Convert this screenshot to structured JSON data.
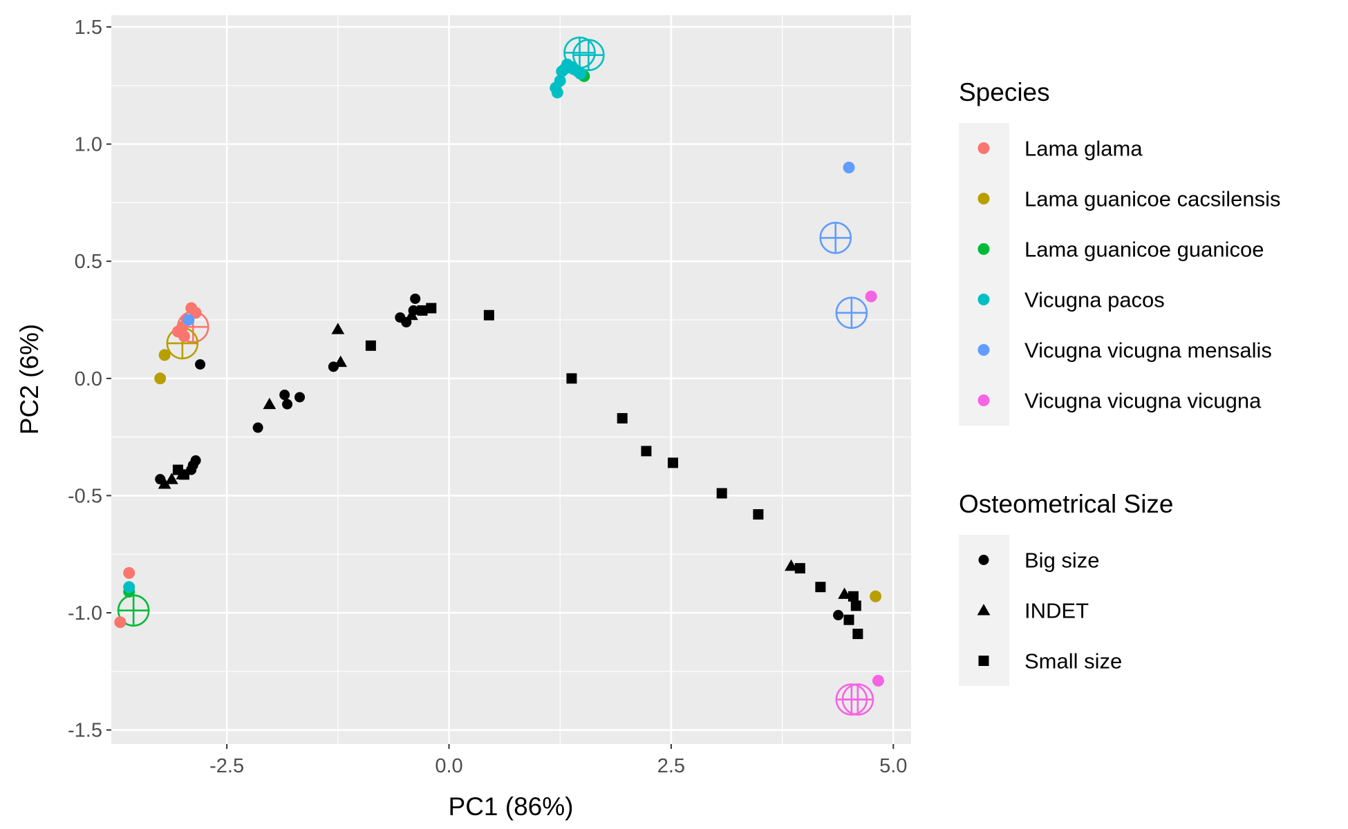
{
  "chart_data": {
    "type": "scatter",
    "title": "",
    "xlabel": "PC1 (86%)",
    "ylabel": "PC2 (6%)",
    "xlim": [
      -3.8,
      5.2
    ],
    "ylim": [
      -1.56,
      1.55
    ],
    "x_ticks": [
      -2.5,
      0.0,
      2.5,
      5.0
    ],
    "x_tick_labels": [
      "-2.5",
      "0.0",
      "2.5",
      "5.0"
    ],
    "y_ticks": [
      -1.5,
      -1.0,
      -0.5,
      0.0,
      0.5,
      1.0,
      1.5
    ],
    "y_tick_labels": [
      "-1.5",
      "-1.0",
      "-0.5",
      "0.0",
      "0.5",
      "1.0",
      "1.5"
    ],
    "grid": true,
    "legend_position": "right",
    "species_legend": {
      "title": "Species",
      "entries": [
        {
          "name": "Lama glama",
          "color": "#F8766D"
        },
        {
          "name": "Lama guanicoe cacsilensis",
          "color": "#B79F00"
        },
        {
          "name": "Lama guanicoe guanicoe",
          "color": "#00BA38"
        },
        {
          "name": "Vicugna pacos",
          "color": "#00BFC4"
        },
        {
          "name": "Vicugna vicugna mensalis",
          "color": "#619CFF"
        },
        {
          "name": "Vicugna vicugna vicugna",
          "color": "#F564E3"
        }
      ]
    },
    "size_legend": {
      "title": "Osteometrical Size",
      "entries": [
        {
          "name": "Big size",
          "shape": "circle"
        },
        {
          "name": "INDET",
          "shape": "triangle"
        },
        {
          "name": "Small size",
          "shape": "square"
        }
      ]
    },
    "species_points": [
      {
        "x": -2.9,
        "y": 0.3,
        "species": "Lama glama"
      },
      {
        "x": -2.85,
        "y": 0.28,
        "species": "Lama glama"
      },
      {
        "x": -2.95,
        "y": 0.25,
        "species": "Lama glama"
      },
      {
        "x": -3.0,
        "y": 0.22,
        "species": "Lama glama"
      },
      {
        "x": -3.05,
        "y": 0.2,
        "species": "Lama glama"
      },
      {
        "x": -2.98,
        "y": 0.18,
        "species": "Lama glama"
      },
      {
        "x": -3.6,
        "y": -0.83,
        "species": "Lama glama"
      },
      {
        "x": -3.7,
        "y": -1.04,
        "species": "Lama glama"
      },
      {
        "x": -3.2,
        "y": 0.1,
        "species": "Lama guanicoe cacsilensis"
      },
      {
        "x": -3.25,
        "y": 0.0,
        "species": "Lama guanicoe cacsilensis"
      },
      {
        "x": 4.8,
        "y": -0.93,
        "species": "Lama guanicoe cacsilensis"
      },
      {
        "x": 1.52,
        "y": 1.29,
        "species": "Lama guanicoe guanicoe"
      },
      {
        "x": -3.6,
        "y": -0.91,
        "species": "Lama guanicoe guanicoe"
      },
      {
        "x": 1.2,
        "y": 1.24,
        "species": "Vicugna pacos"
      },
      {
        "x": 1.22,
        "y": 1.22,
        "species": "Vicugna pacos"
      },
      {
        "x": 1.25,
        "y": 1.27,
        "species": "Vicugna pacos"
      },
      {
        "x": 1.27,
        "y": 1.31,
        "species": "Vicugna pacos"
      },
      {
        "x": 1.3,
        "y": 1.32,
        "species": "Vicugna pacos"
      },
      {
        "x": 1.33,
        "y": 1.34,
        "species": "Vicugna pacos"
      },
      {
        "x": 1.37,
        "y": 1.33,
        "species": "Vicugna pacos"
      },
      {
        "x": 1.4,
        "y": 1.32,
        "species": "Vicugna pacos"
      },
      {
        "x": 1.45,
        "y": 1.31,
        "species": "Vicugna pacos"
      },
      {
        "x": 1.48,
        "y": 1.3,
        "species": "Vicugna pacos"
      },
      {
        "x": -3.6,
        "y": -0.89,
        "species": "Vicugna pacos"
      },
      {
        "x": 4.5,
        "y": 0.9,
        "species": "Vicugna vicugna mensalis"
      },
      {
        "x": -2.93,
        "y": 0.25,
        "species": "Vicugna vicugna mensalis"
      },
      {
        "x": 4.75,
        "y": 0.35,
        "species": "Vicugna vicugna vicugna"
      },
      {
        "x": 4.83,
        "y": -1.29,
        "species": "Vicugna vicugna vicugna"
      }
    ],
    "centroids": [
      {
        "x": -2.88,
        "y": 0.22,
        "species": "Lama glama"
      },
      {
        "x": -3.0,
        "y": 0.15,
        "species": "Lama guanicoe cacsilensis"
      },
      {
        "x": -3.55,
        "y": -0.99,
        "species": "Lama guanicoe guanicoe"
      },
      {
        "x": 1.47,
        "y": 1.39,
        "species": "Vicugna pacos"
      },
      {
        "x": 1.57,
        "y": 1.38,
        "species": "Vicugna pacos"
      },
      {
        "x": 4.35,
        "y": 0.6,
        "species": "Vicugna vicugna mensalis"
      },
      {
        "x": 4.53,
        "y": 0.28,
        "species": "Vicugna vicugna mensalis"
      },
      {
        "x": 4.53,
        "y": -1.37,
        "species": "Vicugna vicugna vicugna"
      },
      {
        "x": 4.6,
        "y": -1.37,
        "species": "Vicugna vicugna vicugna"
      }
    ],
    "size_points": [
      {
        "x": -0.38,
        "y": 0.34,
        "size": "Big size"
      },
      {
        "x": -0.55,
        "y": 0.26,
        "size": "Big size"
      },
      {
        "x": -0.48,
        "y": 0.24,
        "size": "Big size"
      },
      {
        "x": -0.4,
        "y": 0.29,
        "size": "Big size"
      },
      {
        "x": -1.3,
        "y": 0.05,
        "size": "Big size"
      },
      {
        "x": -2.8,
        "y": 0.06,
        "size": "Big size"
      },
      {
        "x": -1.85,
        "y": -0.07,
        "size": "Big size"
      },
      {
        "x": -1.82,
        "y": -0.11,
        "size": "Big size"
      },
      {
        "x": -1.68,
        "y": -0.08,
        "size": "Big size"
      },
      {
        "x": -2.15,
        "y": -0.21,
        "size": "Big size"
      },
      {
        "x": -2.85,
        "y": -0.35,
        "size": "Big size"
      },
      {
        "x": -2.88,
        "y": -0.37,
        "size": "Big size"
      },
      {
        "x": -2.9,
        "y": -0.39,
        "size": "Big size"
      },
      {
        "x": -3.25,
        "y": -0.43,
        "size": "Big size"
      },
      {
        "x": 4.38,
        "y": -1.01,
        "size": "Big size"
      },
      {
        "x": -1.25,
        "y": 0.21,
        "size": "INDET"
      },
      {
        "x": -1.22,
        "y": 0.07,
        "size": "INDET"
      },
      {
        "x": -2.02,
        "y": -0.11,
        "size": "INDET"
      },
      {
        "x": -0.42,
        "y": 0.27,
        "size": "INDET"
      },
      {
        "x": -3.2,
        "y": -0.45,
        "size": "INDET"
      },
      {
        "x": -3.12,
        "y": -0.43,
        "size": "INDET"
      },
      {
        "x": -3.0,
        "y": -0.41,
        "size": "INDET"
      },
      {
        "x": 3.85,
        "y": -0.8,
        "size": "INDET"
      },
      {
        "x": 4.45,
        "y": -0.92,
        "size": "INDET"
      },
      {
        "x": -0.3,
        "y": 0.29,
        "size": "Small size"
      },
      {
        "x": -0.2,
        "y": 0.3,
        "size": "Small size"
      },
      {
        "x": -0.88,
        "y": 0.14,
        "size": "Small size"
      },
      {
        "x": 0.45,
        "y": 0.27,
        "size": "Small size"
      },
      {
        "x": 1.38,
        "y": 0.0,
        "size": "Small size"
      },
      {
        "x": -3.05,
        "y": -0.39,
        "size": "Small size"
      },
      {
        "x": -2.98,
        "y": -0.41,
        "size": "Small size"
      },
      {
        "x": 1.95,
        "y": -0.17,
        "size": "Small size"
      },
      {
        "x": 2.22,
        "y": -0.31,
        "size": "Small size"
      },
      {
        "x": 2.52,
        "y": -0.36,
        "size": "Small size"
      },
      {
        "x": 3.07,
        "y": -0.49,
        "size": "Small size"
      },
      {
        "x": 3.48,
        "y": -0.58,
        "size": "Small size"
      },
      {
        "x": 3.95,
        "y": -0.81,
        "size": "Small size"
      },
      {
        "x": 4.18,
        "y": -0.89,
        "size": "Small size"
      },
      {
        "x": 4.55,
        "y": -0.93,
        "size": "Small size"
      },
      {
        "x": 4.58,
        "y": -0.97,
        "size": "Small size"
      },
      {
        "x": 4.5,
        "y": -1.03,
        "size": "Small size"
      },
      {
        "x": 4.6,
        "y": -1.09,
        "size": "Small size"
      }
    ]
  }
}
